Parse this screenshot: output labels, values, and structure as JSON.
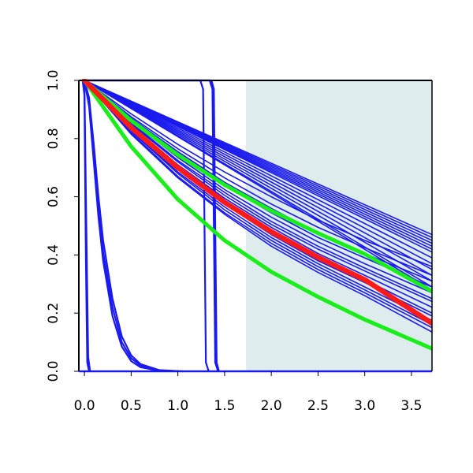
{
  "chart_data": {
    "type": "line",
    "title": "",
    "xlabel": "",
    "ylabel": "",
    "xlim": [
      -0.06,
      3.72
    ],
    "ylim": [
      0.0,
      1.0
    ],
    "x_ticks": [
      "0.0",
      "0.5",
      "1.0",
      "1.5",
      "2.0",
      "2.5",
      "3.0",
      "3.5"
    ],
    "y_ticks": [
      "0.0",
      "0.2",
      "0.4",
      "0.6",
      "0.8",
      "1.0"
    ],
    "grid": false,
    "legend": "none",
    "shaded_region": {
      "x_start": 1.73,
      "x_end": 3.72,
      "color": "#dfeced"
    },
    "colors": {
      "samples": "#1a1aee",
      "mean": "#ff1a1a",
      "bounds": "#1aee1a"
    },
    "samples": {
      "linear": [
        {
          "x": [
            0,
            3.72
          ],
          "y": [
            1.0,
            0.47
          ]
        },
        {
          "x": [
            0,
            3.72
          ],
          "y": [
            1.0,
            0.46
          ]
        },
        {
          "x": [
            0,
            3.72
          ],
          "y": [
            1.0,
            0.45
          ]
        },
        {
          "x": [
            0,
            3.72
          ],
          "y": [
            1.0,
            0.44
          ]
        },
        {
          "x": [
            0,
            3.72
          ],
          "y": [
            1.0,
            0.43
          ]
        },
        {
          "x": [
            0,
            3.72
          ],
          "y": [
            1.0,
            0.42
          ]
        },
        {
          "x": [
            0,
            3.72
          ],
          "y": [
            1.0,
            0.41
          ]
        },
        {
          "x": [
            0,
            3.72
          ],
          "y": [
            1.0,
            0.39
          ]
        },
        {
          "x": [
            0,
            3.72
          ],
          "y": [
            1.0,
            0.37
          ]
        },
        {
          "x": [
            0,
            3.72
          ],
          "y": [
            1.0,
            0.35
          ]
        },
        {
          "x": [
            0,
            3.72
          ],
          "y": [
            1.0,
            0.33
          ]
        },
        {
          "x": [
            0,
            3.72
          ],
          "y": [
            1.0,
            0.31
          ]
        },
        {
          "x": [
            0,
            3.72
          ],
          "y": [
            1.0,
            0.29
          ]
        },
        {
          "x": [
            0,
            3.72
          ],
          "y": [
            1.0,
            0.28
          ]
        }
      ],
      "curved": [
        {
          "x": [
            0,
            0.5,
            1.0,
            1.5,
            2.0,
            2.5,
            3.0,
            3.72
          ],
          "y": [
            1.0,
            0.885,
            0.78,
            0.685,
            0.6,
            0.52,
            0.45,
            0.36
          ]
        },
        {
          "x": [
            0,
            0.5,
            1.0,
            1.5,
            2.0,
            2.5,
            3.0,
            3.72
          ],
          "y": [
            1.0,
            0.875,
            0.765,
            0.665,
            0.575,
            0.495,
            0.425,
            0.33
          ]
        },
        {
          "x": [
            0,
            0.5,
            1.0,
            1.5,
            2.0,
            2.5,
            3.0,
            3.72
          ],
          "y": [
            1.0,
            0.87,
            0.755,
            0.65,
            0.56,
            0.475,
            0.405,
            0.31
          ]
        },
        {
          "x": [
            0,
            0.5,
            1.0,
            1.5,
            2.0,
            2.5,
            3.0,
            3.72
          ],
          "y": [
            1.0,
            0.865,
            0.745,
            0.64,
            0.545,
            0.46,
            0.39,
            0.29
          ]
        },
        {
          "x": [
            0,
            0.5,
            1.0,
            1.5,
            2.0,
            2.5,
            3.0,
            3.72
          ],
          "y": [
            1.0,
            0.86,
            0.735,
            0.625,
            0.53,
            0.445,
            0.37,
            0.27
          ]
        },
        {
          "x": [
            0,
            0.5,
            1.0,
            1.5,
            2.0,
            2.5,
            3.0,
            3.72
          ],
          "y": [
            1.0,
            0.855,
            0.725,
            0.615,
            0.515,
            0.43,
            0.355,
            0.25
          ]
        },
        {
          "x": [
            0,
            0.5,
            1.0,
            1.5,
            2.0,
            2.5,
            3.0,
            3.72
          ],
          "y": [
            1.0,
            0.85,
            0.72,
            0.605,
            0.505,
            0.42,
            0.345,
            0.24
          ]
        },
        {
          "x": [
            0,
            0.5,
            1.0,
            1.5,
            2.0,
            2.5,
            3.0,
            3.72
          ],
          "y": [
            1.0,
            0.845,
            0.71,
            0.595,
            0.495,
            0.405,
            0.33,
            0.22
          ]
        },
        {
          "x": [
            0,
            0.5,
            1.0,
            1.5,
            2.0,
            2.5,
            3.0,
            3.72
          ],
          "y": [
            1.0,
            0.84,
            0.7,
            0.58,
            0.48,
            0.39,
            0.315,
            0.2
          ]
        },
        {
          "x": [
            0,
            0.5,
            1.0,
            1.5,
            2.0,
            2.5,
            3.0,
            3.72
          ],
          "y": [
            1.0,
            0.835,
            0.695,
            0.575,
            0.47,
            0.38,
            0.305,
            0.19
          ]
        },
        {
          "x": [
            0,
            0.5,
            1.0,
            1.5,
            2.0,
            2.5,
            3.0,
            3.72
          ],
          "y": [
            1.0,
            0.83,
            0.685,
            0.565,
            0.46,
            0.37,
            0.29,
            0.175
          ]
        },
        {
          "x": [
            0,
            0.5,
            1.0,
            1.5,
            2.0,
            2.5,
            3.0,
            3.72
          ],
          "y": [
            1.0,
            0.825,
            0.68,
            0.555,
            0.45,
            0.36,
            0.28,
            0.16
          ]
        },
        {
          "x": [
            0,
            0.5,
            1.0,
            1.5,
            2.0,
            2.5,
            3.0,
            3.72
          ],
          "y": [
            1.0,
            0.82,
            0.67,
            0.545,
            0.44,
            0.35,
            0.27,
            0.15
          ]
        },
        {
          "x": [
            0,
            0.5,
            1.0,
            1.5,
            2.0,
            2.5,
            3.0,
            3.72
          ],
          "y": [
            1.0,
            0.815,
            0.665,
            0.54,
            0.43,
            0.34,
            0.26,
            0.135
          ]
        }
      ],
      "fast_decay": [
        {
          "x": [
            0,
            0.05,
            0.1,
            0.15,
            0.2,
            0.3,
            0.4,
            0.5,
            0.6,
            0.8,
            1.05
          ],
          "y": [
            1.0,
            0.94,
            0.78,
            0.6,
            0.45,
            0.25,
            0.12,
            0.055,
            0.025,
            0.004,
            0.0
          ]
        },
        {
          "x": [
            0,
            0.05,
            0.1,
            0.15,
            0.2,
            0.3,
            0.4,
            0.5,
            0.6,
            0.8,
            1.0
          ],
          "y": [
            1.0,
            0.92,
            0.74,
            0.56,
            0.41,
            0.22,
            0.1,
            0.045,
            0.02,
            0.003,
            0.0
          ]
        },
        {
          "x": [
            0,
            0.05,
            0.1,
            0.15,
            0.2,
            0.3,
            0.4,
            0.5,
            0.6,
            0.8,
            1.0
          ],
          "y": [
            1.0,
            0.91,
            0.72,
            0.53,
            0.38,
            0.19,
            0.085,
            0.035,
            0.014,
            0.002,
            0.0
          ]
        },
        {
          "x": [
            -0.02,
            0.0,
            0.02,
            0.04,
            0.06
          ],
          "y": [
            1.0,
            0.98,
            0.5,
            0.05,
            0.0
          ]
        },
        {
          "x": [
            -0.02,
            0.0,
            0.015,
            0.03,
            0.05
          ],
          "y": [
            1.0,
            0.95,
            0.4,
            0.03,
            0.0
          ]
        }
      ],
      "step": [
        {
          "x": [
            0.0,
            1.24,
            1.27,
            1.285,
            1.3,
            1.33
          ],
          "y": [
            1.0,
            1.0,
            0.97,
            0.5,
            0.03,
            0.0
          ]
        },
        {
          "x": [
            0.0,
            1.34,
            1.37,
            1.385,
            1.4,
            1.43
          ],
          "y": [
            1.0,
            1.0,
            0.97,
            0.5,
            0.03,
            0.0
          ]
        },
        {
          "x": [
            0.0,
            1.36,
            1.385,
            1.4,
            1.415,
            1.44
          ],
          "y": [
            1.0,
            1.0,
            0.97,
            0.5,
            0.03,
            0.0
          ]
        }
      ]
    },
    "mean": {
      "x": [
        0,
        0.5,
        1.0,
        1.5,
        2.0,
        2.5,
        3.0,
        3.72
      ],
      "y": [
        1.0,
        0.838,
        0.7,
        0.581,
        0.48,
        0.392,
        0.315,
        0.165
      ]
    },
    "bounds": [
      {
        "x": [
          0,
          0.5,
          1.0,
          1.5,
          2.0,
          2.5,
          3.0,
          3.72
        ],
        "y": [
          1.0,
          0.862,
          0.744,
          0.641,
          0.552,
          0.475,
          0.403,
          0.275
        ]
      },
      {
        "x": [
          0,
          0.5,
          1.0,
          1.5,
          2.0,
          2.5,
          3.0,
          3.72
        ],
        "y": [
          1.0,
          0.773,
          0.591,
          0.45,
          0.342,
          0.256,
          0.178,
          0.078
        ]
      }
    ]
  }
}
